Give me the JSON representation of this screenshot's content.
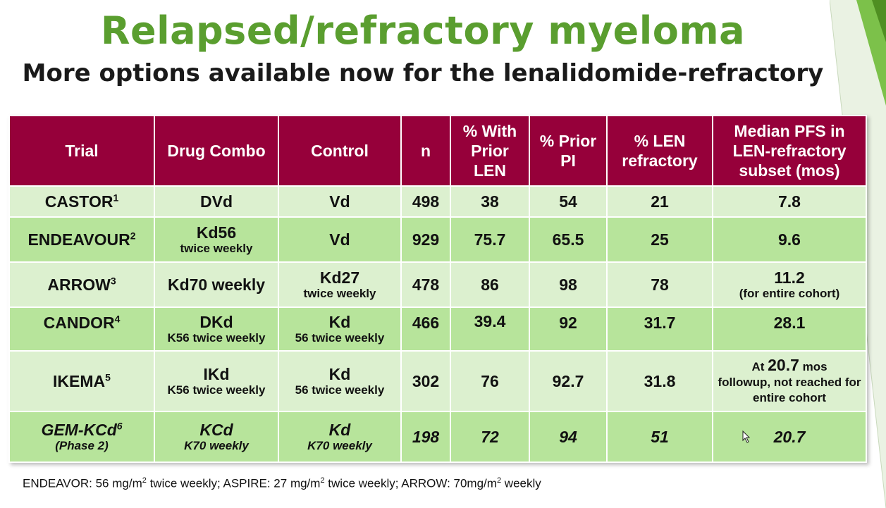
{
  "slide": {
    "title": "Relapsed/refractory myeloma",
    "subtitle": "More options available now for the lenalidomide-refractory"
  },
  "table": {
    "headers": {
      "trial": "Trial",
      "combo": "Drug Combo",
      "control": "Control",
      "n": "n",
      "prior_len": "% With Prior LEN",
      "prior_pi": "% Prior PI",
      "len_refractory": "% LEN refractory",
      "pfs": "Median PFS in LEN-refractory subset  (mos)"
    },
    "rows": [
      {
        "trial": "CASTOR",
        "ref": "1",
        "combo": "DVd",
        "combo_sub": "",
        "control": "Vd",
        "control_sub": "",
        "n": "498",
        "prior_len": "38",
        "prior_pi": "54",
        "len_refractory": "21",
        "pfs": "7.8",
        "pfs_note": ""
      },
      {
        "trial": "ENDEAVOUR",
        "ref": "2",
        "combo": "Kd56",
        "combo_sub": "twice weekly",
        "control": "Vd",
        "control_sub": "",
        "n": "929",
        "prior_len": "75.7",
        "prior_pi": "65.5",
        "len_refractory": "25",
        "pfs": "9.6",
        "pfs_note": ""
      },
      {
        "trial": "ARROW",
        "ref": "3",
        "combo": "Kd70 weekly",
        "combo_sub": "",
        "control": "Kd27",
        "control_sub": "twice weekly",
        "n": "478",
        "prior_len": "86",
        "prior_pi": "98",
        "len_refractory": "78",
        "pfs": "11.2",
        "pfs_note": "(for entire cohort)"
      },
      {
        "trial": "CANDOR",
        "ref": "4",
        "combo": "DKd",
        "combo_sub": "K56 twice weekly",
        "control": "Kd",
        "control_sub": "56 twice weekly",
        "n": "466",
        "prior_len": "39.4",
        "prior_pi": "92",
        "len_refractory": "31.7",
        "pfs": "28.1",
        "pfs_note": ""
      },
      {
        "trial": "IKEMA",
        "ref": "5",
        "combo": "IKd",
        "combo_sub": "K56 twice weekly",
        "control": "Kd",
        "control_sub": "56 twice weekly",
        "n": "302",
        "prior_len": "76",
        "prior_pi": "92.7",
        "len_refractory": "31.8",
        "pfs_prefix": "At ",
        "pfs_big": "20.7",
        "pfs_suffix": " mos",
        "pfs_note": "followup, not reached for entire cohort"
      },
      {
        "trial": "GEM-KCd",
        "ref": "6",
        "trial_sub": "(Phase 2)",
        "combo": "KCd",
        "combo_sub": "K70 weekly",
        "control": "Kd",
        "control_sub": "K70 weekly",
        "n": "198",
        "prior_len": "72",
        "prior_pi": "94",
        "len_refractory": "51",
        "pfs": "20.7",
        "pfs_note": ""
      }
    ]
  },
  "footnote": {
    "a": "ENDEAVOR: 56 mg/m",
    "b": " twice weekly; ASPIRE: 27 mg/m",
    "c": " twice weekly; ARROW: 70mg/m",
    "d": " weekly",
    "sup": "2"
  },
  "colors": {
    "title_green": "#5a9e2f",
    "header_maroon": "#96003a",
    "row_light": "#dcf0cf",
    "row_dark": "#b7e49b"
  }
}
